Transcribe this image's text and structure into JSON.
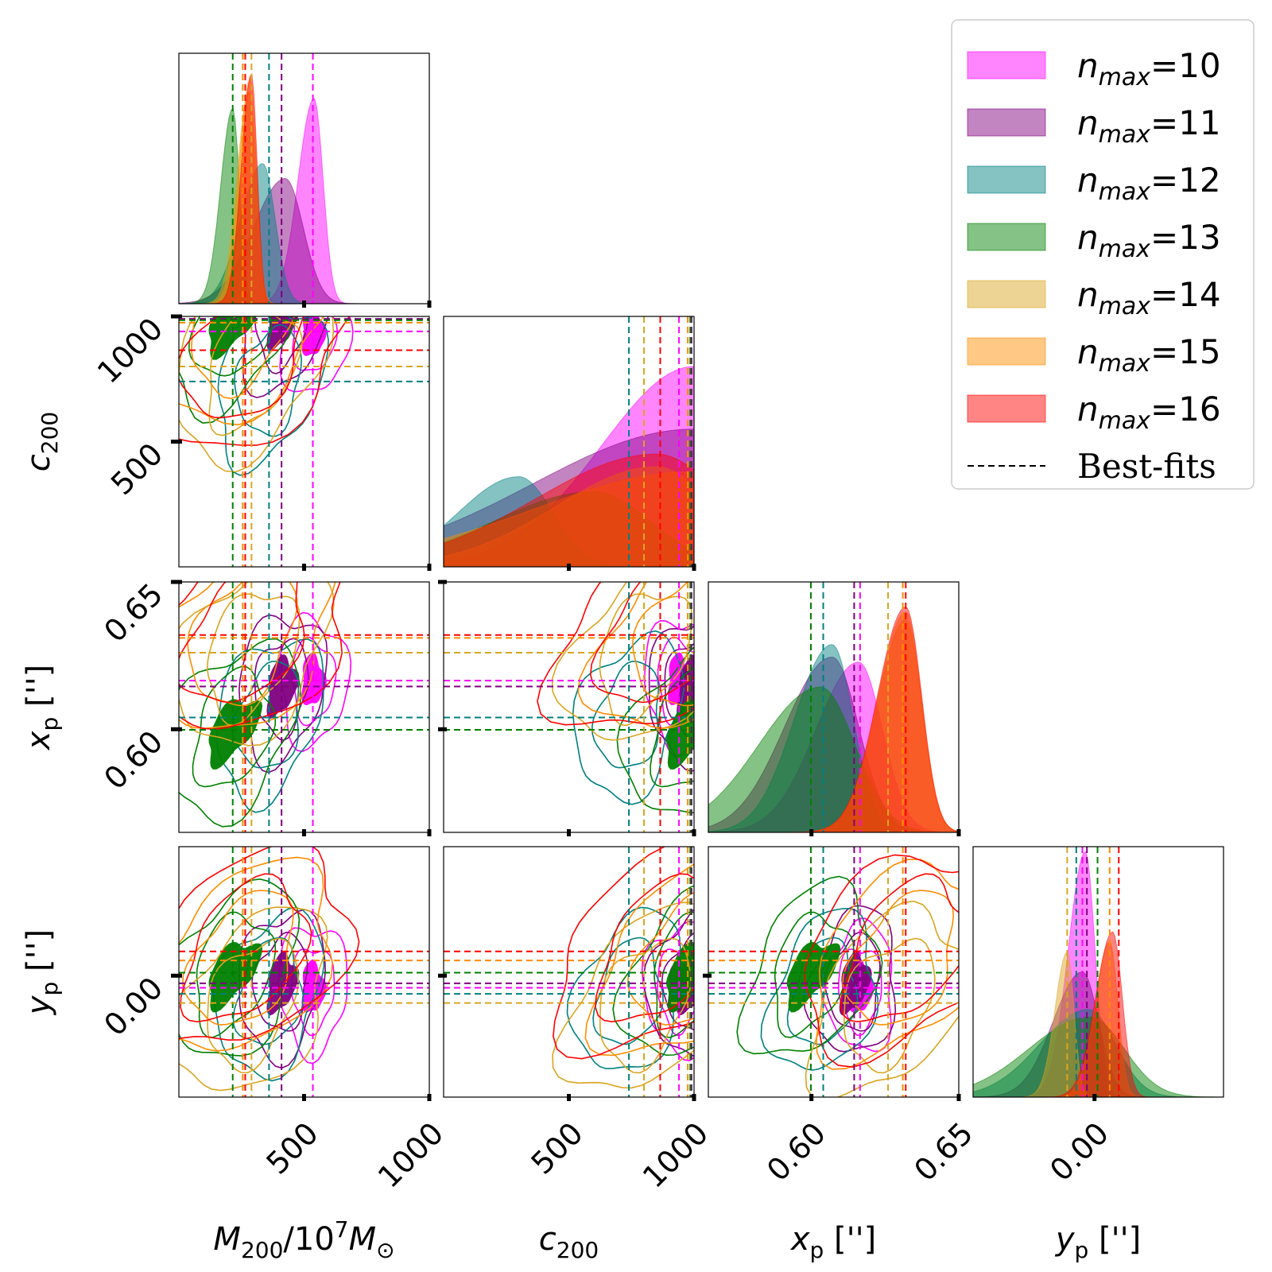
{
  "chart_data": {
    "type": "corner",
    "parameters": [
      {
        "key": "M200",
        "label_main": "M",
        "label_sub": "200",
        "label_rest": "/10",
        "label_sup": "7",
        "label_m2": "M",
        "label_sun": "⊙",
        "range": [
          0,
          1000
        ],
        "ticks": [
          "500",
          "1000"
        ],
        "tick_values": [
          500,
          1000
        ]
      },
      {
        "key": "c200",
        "label_main": "c",
        "label_sub": "200",
        "range": [
          0,
          1000
        ],
        "ticks": [
          "500",
          "1000"
        ],
        "tick_values": [
          500,
          1000
        ]
      },
      {
        "key": "xp",
        "label_main": "x",
        "label_sub": "p",
        "label_unit": " ['']",
        "range": [
          0.565,
          0.65
        ],
        "ticks": [
          "0.60",
          "0.65"
        ],
        "tick_values": [
          0.6,
          0.65
        ]
      },
      {
        "key": "yp",
        "label_main": "y",
        "label_sub": "p",
        "label_unit": " ['']",
        "range": [
          -0.08,
          0.085
        ],
        "ticks": [
          "0.00"
        ],
        "tick_values": [
          0.0
        ]
      }
    ],
    "series": [
      {
        "name": "n_max=10",
        "label_main": "n",
        "label_sub": "max",
        "label_val": "=10",
        "color": "#ff00ff",
        "best_fit": [
          535,
          940,
          0.6165,
          -0.008
        ]
      },
      {
        "name": "n_max=11",
        "label_main": "n",
        "label_sub": "max",
        "label_val": "=11",
        "color": "#800080",
        "best_fit": [
          410,
          990,
          0.6145,
          -0.005
        ]
      },
      {
        "name": "n_max=12",
        "label_main": "n",
        "label_sub": "max",
        "label_val": "=12",
        "color": "#008080",
        "best_fit": [
          360,
          740,
          0.604,
          -0.012
        ]
      },
      {
        "name": "n_max=13",
        "label_main": "n",
        "label_sub": "max",
        "label_val": "=13",
        "color": "#008000",
        "best_fit": [
          215,
          985,
          0.5998,
          0.002
        ]
      },
      {
        "name": "n_max=14",
        "label_main": "n",
        "label_sub": "max",
        "label_val": "=14",
        "color": "#daa520",
        "best_fit": [
          290,
          800,
          0.626,
          -0.018
        ]
      },
      {
        "name": "n_max=15",
        "label_main": "n",
        "label_sub": "max",
        "label_val": "=15",
        "color": "#ff8c00",
        "best_fit": [
          255,
          975,
          0.631,
          0.01
        ]
      },
      {
        "name": "n_max=16",
        "label_main": "n",
        "label_sub": "max",
        "label_val": "=16",
        "color": "#ff0000",
        "best_fit": [
          265,
          865,
          0.632,
          0.016
        ]
      }
    ],
    "marginals": {
      "M200": [
        {
          "series": 0,
          "peak": 540,
          "width": 40,
          "height": 0.82
        },
        {
          "series": 1,
          "peak": 425,
          "width": 80,
          "height": 0.5
        },
        {
          "series": 2,
          "peak": 335,
          "width": 55,
          "height": 0.56
        },
        {
          "series": 3,
          "peak": 215,
          "width": 30,
          "height": 0.78
        },
        {
          "series": 4,
          "peak": 280,
          "width": 30,
          "height": 0.85
        },
        {
          "series": 5,
          "peak": 285,
          "width": 28,
          "height": 0.9
        },
        {
          "series": 6,
          "peak": 290,
          "width": 25,
          "height": 0.92
        }
      ],
      "c200": [
        {
          "series": 0,
          "peak": 1000,
          "width": 230,
          "height": 0.8
        },
        {
          "series": 1,
          "peak": 1000,
          "width": 400,
          "height": 0.55
        },
        {
          "series": 2,
          "peak": 300,
          "width": 150,
          "height": 0.36
        },
        {
          "series": 3,
          "peak": 600,
          "width": 250,
          "height": 0.3
        },
        {
          "series": 4,
          "peak": 850,
          "width": 250,
          "height": 0.4
        },
        {
          "series": 5,
          "peak": 1000,
          "width": 400,
          "height": 0.38
        },
        {
          "series": 6,
          "peak": 850,
          "width": 300,
          "height": 0.45
        }
      ],
      "xp": [
        {
          "series": 0,
          "peak": 0.616,
          "width": 0.009,
          "height": 0.68
        },
        {
          "series": 1,
          "peak": 0.607,
          "width": 0.01,
          "height": 0.7
        },
        {
          "series": 2,
          "peak": 0.607,
          "width": 0.008,
          "height": 0.75
        },
        {
          "series": 3,
          "peak": 0.603,
          "width": 0.013,
          "height": 0.58
        },
        {
          "series": 4,
          "peak": 0.632,
          "width": 0.006,
          "height": 0.85
        },
        {
          "series": 5,
          "peak": 0.632,
          "width": 0.006,
          "height": 0.88
        },
        {
          "series": 6,
          "peak": 0.632,
          "width": 0.006,
          "height": 0.9
        }
      ],
      "yp": [
        {
          "series": 0,
          "peak": -0.006,
          "width": 0.007,
          "height": 0.98
        },
        {
          "series": 1,
          "peak": -0.008,
          "width": 0.012,
          "height": 0.5
        },
        {
          "series": 2,
          "peak": -0.004,
          "width": 0.02,
          "height": 0.35
        },
        {
          "series": 3,
          "peak": -0.003,
          "width": 0.025,
          "height": 0.32
        },
        {
          "series": 4,
          "peak": -0.018,
          "width": 0.005,
          "height": 0.58
        },
        {
          "series": 5,
          "peak": 0.01,
          "width": 0.006,
          "height": 0.62
        },
        {
          "series": 6,
          "peak": 0.012,
          "width": 0.007,
          "height": 0.66
        }
      ]
    },
    "legend_position": "top-right",
    "legend_extra": "Best-fits"
  }
}
